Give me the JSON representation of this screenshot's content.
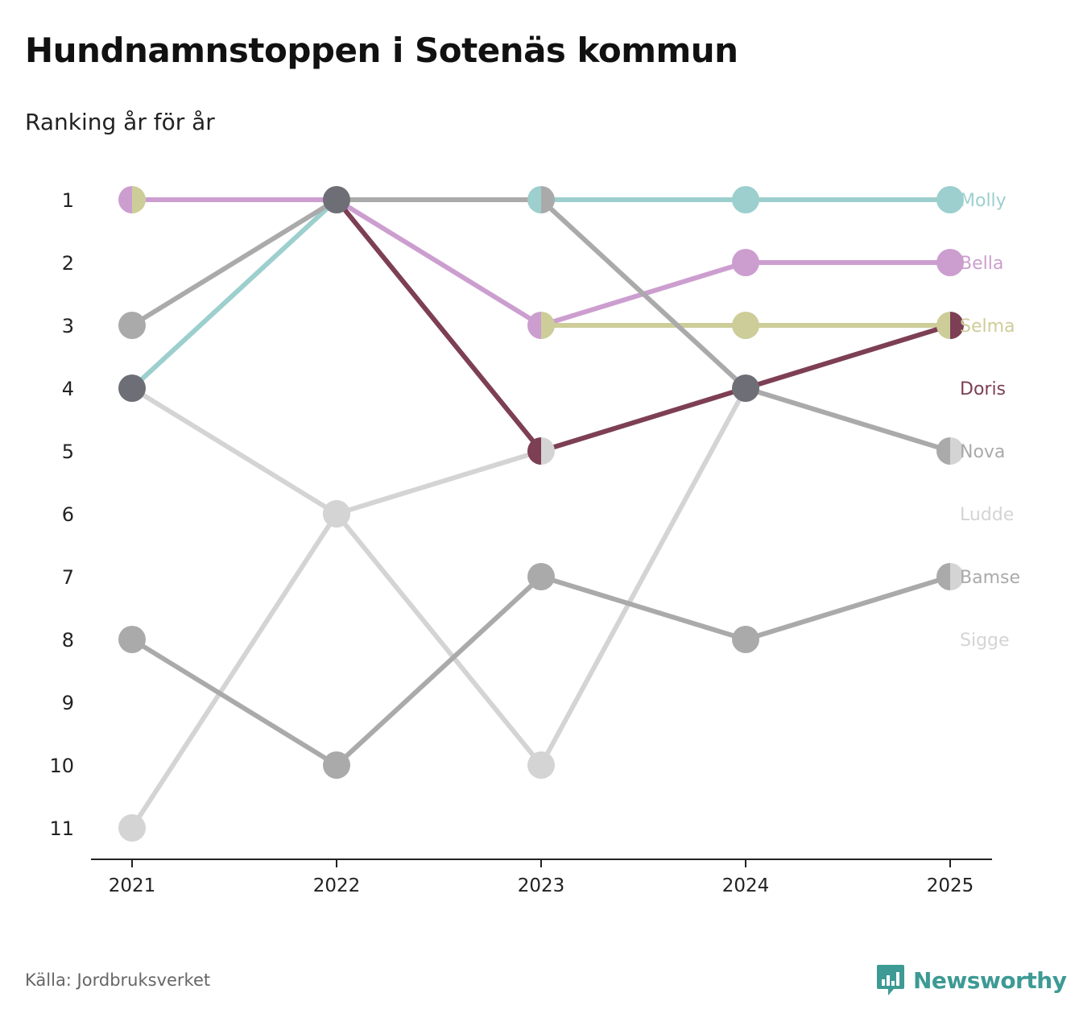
{
  "title": "Hundnamnstoppen i Sotenäs kommun",
  "subtitle": "Ranking år för år",
  "source": "Källa: Jordbruksverket",
  "brand": {
    "name": "Newsworthy",
    "icon": "bar-chart-speech-icon",
    "color": "#3d9a94"
  },
  "chart_data": {
    "type": "line",
    "variant": "bump",
    "x": [
      "2021",
      "2022",
      "2023",
      "2024",
      "2025"
    ],
    "y_ticks": [
      "1",
      "2",
      "3",
      "4",
      "5",
      "6",
      "7",
      "8",
      "9",
      "10",
      "11"
    ],
    "y_inverted": true,
    "ylim": [
      1,
      11
    ],
    "grid": false,
    "series": [
      {
        "name": "Molly",
        "color": "#9ccfcd",
        "values": [
          4,
          1,
          1,
          1,
          1
        ]
      },
      {
        "name": "Bella",
        "color": "#cc9ecf",
        "values": [
          1,
          1,
          3,
          2,
          2
        ]
      },
      {
        "name": "Selma",
        "color": "#cdcd99",
        "values": [
          1,
          null,
          3,
          3,
          3
        ]
      },
      {
        "name": "Doris",
        "color": "#7d3f54",
        "values": [
          null,
          1,
          5,
          4,
          3
        ]
      },
      {
        "name": "Nova",
        "color": "#aaaaaa",
        "values": [
          3,
          1,
          1,
          4,
          5
        ]
      },
      {
        "name": "Ludde",
        "color": "#d4d4d4",
        "values": [
          4,
          6,
          10,
          4,
          null
        ]
      },
      {
        "name": "Bamse",
        "color": "#aaaaaa",
        "values": [
          8,
          10,
          7,
          8,
          7
        ]
      },
      {
        "name": "Sigge",
        "color": "#d4d4d4",
        "values": [
          11,
          6,
          5,
          null,
          7
        ]
      }
    ],
    "tie_markers": [
      {
        "x": "2022",
        "y": 1,
        "color": "#6e6e76"
      },
      {
        "x": "2021",
        "y": 4,
        "color": "#6e6e76"
      },
      {
        "x": "2024",
        "y": 4,
        "color": "#6e6e76"
      }
    ],
    "split_markers": [
      {
        "x": "2021",
        "y": 1,
        "left": "#cc9ecf",
        "right": "#cdcd99"
      },
      {
        "x": "2023",
        "y": 1,
        "left": "#9ccfcd",
        "right": "#aaaaaa"
      },
      {
        "x": "2023",
        "y": 3,
        "left": "#cc9ecf",
        "right": "#cdcd99"
      },
      {
        "x": "2023",
        "y": 5,
        "left": "#7d3f54",
        "right": "#d4d4d4"
      },
      {
        "x": "2025",
        "y": 3,
        "left": "#cdcd99",
        "right": "#7d3f54"
      },
      {
        "x": "2025",
        "y": 5,
        "left": "#aaaaaa",
        "right": "#d4d4d4"
      },
      {
        "x": "2025",
        "y": 7,
        "left": "#aaaaaa",
        "right": "#d4d4d4"
      }
    ],
    "end_labels": [
      {
        "name": "Molly",
        "y": 1,
        "color": "#9ccfcd"
      },
      {
        "name": "Bella",
        "y": 2,
        "color": "#cc9ecf"
      },
      {
        "name": "Selma",
        "y": 3,
        "color": "#cdcd99"
      },
      {
        "name": "Doris",
        "y": 4,
        "color": "#7d3f54"
      },
      {
        "name": "Nova",
        "y": 5,
        "color": "#aaaaaa"
      },
      {
        "name": "Ludde",
        "y": 6,
        "color": "#d4d4d4"
      },
      {
        "name": "Bamse",
        "y": 7,
        "color": "#aaaaaa"
      },
      {
        "name": "Sigge",
        "y": 8,
        "color": "#d4d4d4"
      }
    ]
  }
}
